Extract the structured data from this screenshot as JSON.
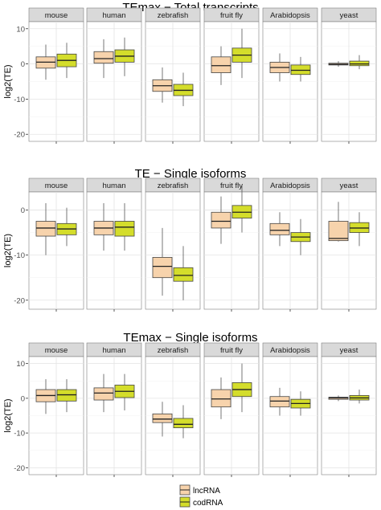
{
  "chart_data": {
    "type": "boxplot",
    "legend": {
      "placement": "bottom",
      "entries": [
        {
          "label": "lncRNA",
          "color": "#f7d3ac"
        },
        {
          "label": "codRNA",
          "color": "#d4dd2b"
        }
      ]
    },
    "panels": [
      {
        "title": "TEmax − Total transcripts",
        "ylabel": "log2(TE)",
        "ylim": [
          -22,
          12
        ],
        "yticks": [
          10,
          0,
          -10,
          -20
        ],
        "grid": true,
        "facets": [
          "mouse",
          "human",
          "zebrafish",
          "fruit fly",
          "Arabidopsis",
          "yeast"
        ],
        "series": [
          {
            "name": "lncRNA",
            "boxes": [
              {
                "whislo": -4.5,
                "q1": -1.2,
                "med": 0.5,
                "q3": 2.0,
                "whishi": 5.5
              },
              {
                "whislo": -4.0,
                "q1": 0.2,
                "med": 1.5,
                "q3": 3.5,
                "whishi": 7.0
              },
              {
                "whislo": -11.0,
                "q1": -7.8,
                "med": -6.2,
                "q3": -4.5,
                "whishi": -1.0
              },
              {
                "whislo": -6.0,
                "q1": -2.5,
                "med": -0.5,
                "q3": 2.0,
                "whishi": 5.0
              },
              {
                "whislo": -5.0,
                "q1": -2.5,
                "med": -1.0,
                "q3": 0.5,
                "whishi": 3.0
              },
              {
                "whislo": -0.8,
                "q1": -0.3,
                "med": -0.1,
                "q3": 0.2,
                "whishi": 0.8
              }
            ]
          },
          {
            "name": "codRNA",
            "boxes": [
              {
                "whislo": -4.0,
                "q1": -0.8,
                "med": 1.0,
                "q3": 2.8,
                "whishi": 6.0
              },
              {
                "whislo": -3.5,
                "q1": 0.5,
                "med": 2.2,
                "q3": 4.0,
                "whishi": 7.5
              },
              {
                "whislo": -12.0,
                "q1": -9.0,
                "med": -7.5,
                "q3": -5.8,
                "whishi": -2.5
              },
              {
                "whislo": -4.0,
                "q1": 0.5,
                "med": 2.5,
                "q3": 4.5,
                "whishi": 10.0
              },
              {
                "whislo": -5.0,
                "q1": -3.0,
                "med": -1.8,
                "q3": -0.3,
                "whishi": 2.0
              },
              {
                "whislo": -1.5,
                "q1": -0.5,
                "med": 0.0,
                "q3": 0.8,
                "whishi": 2.5
              }
            ]
          }
        ]
      },
      {
        "title": "TE − Single isoforms",
        "ylabel": "log2(TE)",
        "ylim": [
          -22,
          4
        ],
        "yticks": [
          0,
          -10,
          -20
        ],
        "grid": true,
        "facets": [
          "mouse",
          "human",
          "zebrafish",
          "fruit fly",
          "Arabidopsis",
          "yeast"
        ],
        "series": [
          {
            "name": "lncRNA",
            "boxes": [
              {
                "whislo": -10.0,
                "q1": -5.8,
                "med": -4.0,
                "q3": -2.5,
                "whishi": 1.5
              },
              {
                "whislo": -9.0,
                "q1": -5.5,
                "med": -4.0,
                "q3": -2.5,
                "whishi": 1.5
              },
              {
                "whislo": -19.0,
                "q1": -15.0,
                "med": -12.5,
                "q3": -10.5,
                "whishi": -4.0
              },
              {
                "whislo": -7.5,
                "q1": -4.0,
                "med": -2.5,
                "q3": -0.5,
                "whishi": 3.0
              },
              {
                "whislo": -8.0,
                "q1": -5.5,
                "med": -4.5,
                "q3": -3.0,
                "whishi": -0.5
              },
              {
                "whislo": -7.0,
                "q1": -6.8,
                "med": -6.3,
                "q3": -2.5,
                "whishi": 1.8
              }
            ]
          },
          {
            "name": "codRNA",
            "boxes": [
              {
                "whislo": -8.0,
                "q1": -5.5,
                "med": -4.2,
                "q3": -3.0,
                "whishi": 0.5
              },
              {
                "whislo": -9.0,
                "q1": -5.8,
                "med": -3.8,
                "q3": -2.5,
                "whishi": 1.5
              },
              {
                "whislo": -20.0,
                "q1": -15.8,
                "med": -14.5,
                "q3": -12.8,
                "whishi": -8.0
              },
              {
                "whislo": -5.0,
                "q1": -1.8,
                "med": -0.5,
                "q3": 1.0,
                "whishi": 5.5
              },
              {
                "whislo": -10.0,
                "q1": -7.0,
                "med": -6.0,
                "q3": -5.0,
                "whishi": -2.0
              },
              {
                "whislo": -8.0,
                "q1": -5.0,
                "med": -4.0,
                "q3": -2.8,
                "whishi": -0.5
              }
            ]
          }
        ]
      },
      {
        "title": "TEmax − Single isoforms",
        "ylabel": "log2(TE)",
        "ylim": [
          -22,
          12
        ],
        "yticks": [
          10,
          0,
          -10,
          -20
        ],
        "grid": true,
        "facets": [
          "mouse",
          "human",
          "zebrafish",
          "fruit fly",
          "Arabidopsis",
          "yeast"
        ],
        "series": [
          {
            "name": "lncRNA",
            "boxes": [
              {
                "whislo": -4.5,
                "q1": -1.0,
                "med": 0.8,
                "q3": 2.5,
                "whishi": 5.5
              },
              {
                "whislo": -4.0,
                "q1": -0.5,
                "med": 1.5,
                "q3": 3.0,
                "whishi": 7.0
              },
              {
                "whislo": -11.0,
                "q1": -7.0,
                "med": -6.0,
                "q3": -4.5,
                "whishi": -1.0
              },
              {
                "whislo": -6.0,
                "q1": -2.5,
                "med": -0.2,
                "q3": 2.5,
                "whishi": 6.0
              },
              {
                "whislo": -5.0,
                "q1": -2.5,
                "med": -0.8,
                "q3": 0.5,
                "whishi": 3.0
              },
              {
                "whislo": -0.8,
                "q1": -0.3,
                "med": 0.1,
                "q3": 0.3,
                "whishi": 0.8
              }
            ]
          },
          {
            "name": "codRNA",
            "boxes": [
              {
                "whislo": -4.0,
                "q1": -0.8,
                "med": 1.0,
                "q3": 2.5,
                "whishi": 5.5
              },
              {
                "whislo": -3.5,
                "q1": 0.2,
                "med": 2.0,
                "q3": 3.8,
                "whishi": 7.0
              },
              {
                "whislo": -11.5,
                "q1": -8.5,
                "med": -7.5,
                "q3": -5.8,
                "whishi": -2.0
              },
              {
                "whislo": -4.0,
                "q1": 0.5,
                "med": 2.5,
                "q3": 4.5,
                "whishi": 10.0
              },
              {
                "whislo": -5.0,
                "q1": -2.8,
                "med": -1.5,
                "q3": -0.3,
                "whishi": 2.0
              },
              {
                "whislo": -1.5,
                "q1": -0.5,
                "med": 0.1,
                "q3": 0.8,
                "whishi": 2.5
              }
            ]
          }
        ]
      }
    ]
  }
}
